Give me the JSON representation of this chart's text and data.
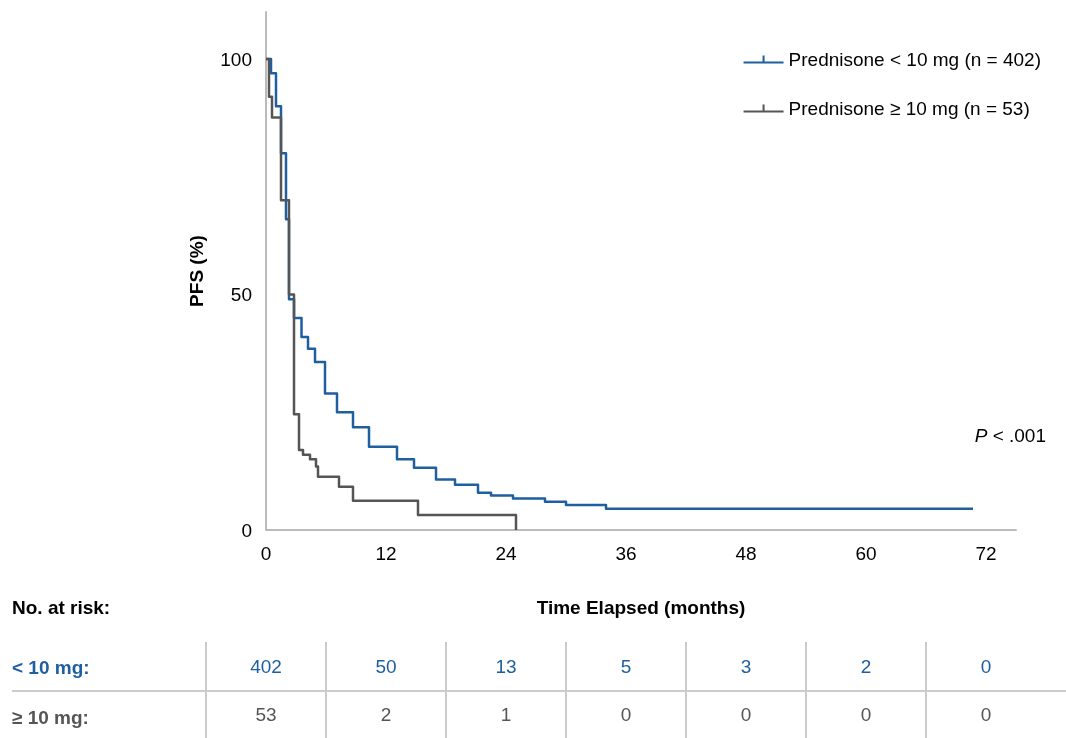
{
  "chart_data": [
    {
      "type": "step",
      "xlabel": "Time Elapsed (months)",
      "ylabel": "PFS (%)",
      "series": [
        {
          "name": "Prednisone < 10 mg (n = 402)",
          "color": "#1f5fa0",
          "x": [
            0,
            0.5,
            1,
            1.5,
            2,
            2.3,
            2.8,
            3.55,
            4.2,
            4.9,
            5.9,
            7.1,
            8.7,
            10.3,
            13.1,
            14.8,
            17,
            18.9,
            21.2,
            22.5,
            24.7,
            27.9,
            30,
            34,
            70.7
          ],
          "values": [
            100,
            97,
            90,
            80,
            66,
            49,
            45,
            41,
            38.5,
            35.7,
            29,
            25,
            21.8,
            17.7,
            15,
            13.2,
            10.7,
            9.6,
            7.9,
            7.3,
            6.7,
            6,
            5.3,
            4.5,
            4.5
          ]
        },
        {
          "name": "Prednisone ≥ 10 mg (n = 53)",
          "color": "#555555",
          "x": [
            0,
            0.3,
            0.6,
            1.5,
            2.3,
            2.8,
            3.3,
            3.7,
            4.4,
            5,
            5.2,
            7.3,
            8.7,
            15.2,
            25
          ],
          "values": [
            100,
            92,
            87.6,
            70,
            50,
            24.6,
            17,
            16,
            15,
            13.5,
            11.3,
            9.2,
            6.2,
            3.2,
            0
          ]
        }
      ],
      "xlim": [
        0,
        75
      ],
      "xticks": [
        0,
        12,
        24,
        36,
        48,
        60,
        72
      ],
      "ylim": [
        0,
        110
      ],
      "yticks": [
        0,
        50,
        100
      ],
      "grid": false,
      "legend": "top right",
      "marker": "none",
      "line_style": "solid",
      "annotations": [
        "P < .001"
      ]
    },
    {
      "type": "heatmap",
      "title": "No. at risk:",
      "data_labels": true,
      "categories": [
        null,
        null,
        null,
        null,
        null,
        null,
        null
      ],
      "y_categories": [
        "< 10 mg:",
        "≥ 10 mg:"
      ],
      "cells": [
        [
          402,
          50,
          13,
          5,
          3,
          2,
          0
        ],
        [
          53,
          2,
          1,
          0,
          0,
          0,
          0
        ]
      ]
    }
  ]
}
